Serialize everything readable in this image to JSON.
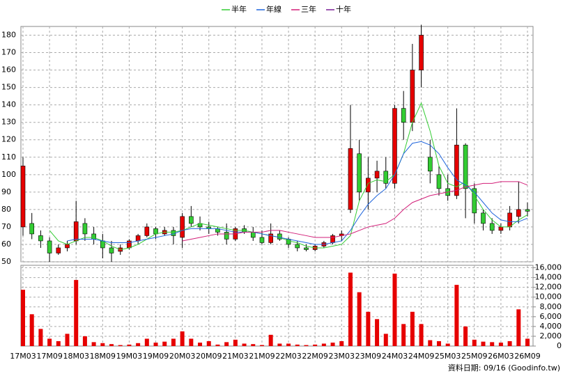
{
  "chart_data": {
    "type": "candlestick",
    "categories": [
      "17M03",
      null,
      null,
      "17M09",
      null,
      null,
      "18M03",
      null,
      null,
      "18M09",
      null,
      null,
      "19M03",
      null,
      null,
      "19M09",
      null,
      null,
      "20M03",
      null,
      null,
      "20M09",
      null,
      null,
      "21M03",
      null,
      null,
      "21M09",
      null,
      null,
      "22M03",
      null,
      null,
      "22M09",
      null,
      null,
      "23M03",
      null,
      null,
      "23M09",
      null,
      null,
      "24M03",
      null,
      null,
      "24M09",
      null,
      null,
      "25M03",
      null,
      null,
      "25M09",
      null,
      null,
      "26M03",
      null,
      null,
      "26M09"
    ],
    "open": [
      70,
      72,
      65,
      62,
      55,
      58,
      62,
      72,
      66,
      62,
      58,
      56,
      58,
      62,
      65,
      69,
      66,
      68,
      64,
      76,
      72,
      70,
      69,
      67,
      63,
      69,
      67,
      64,
      61,
      66,
      63,
      60,
      58,
      57,
      59,
      61,
      65,
      80,
      112,
      90,
      98,
      102,
      95,
      138,
      130,
      160,
      110,
      100,
      92,
      88,
      117,
      92,
      78,
      72,
      68,
      70,
      76,
      80
    ],
    "high": [
      110,
      78,
      68,
      64,
      60,
      62,
      85,
      75,
      70,
      66,
      62,
      60,
      63,
      66,
      72,
      70,
      70,
      70,
      78,
      82,
      76,
      73,
      70,
      72,
      70,
      71,
      70,
      68,
      72,
      68,
      64,
      62,
      60,
      60,
      62,
      66,
      68,
      140,
      120,
      110,
      108,
      110,
      140,
      148,
      175,
      186,
      120,
      105,
      100,
      138,
      118,
      95,
      80,
      75,
      72,
      82,
      96,
      84
    ],
    "low": [
      65,
      63,
      58,
      50,
      54,
      56,
      60,
      62,
      60,
      52,
      50,
      54,
      57,
      60,
      64,
      63,
      65,
      60,
      58,
      70,
      68,
      66,
      65,
      60,
      62,
      66,
      62,
      60,
      60,
      62,
      58,
      56,
      56,
      56,
      58,
      60,
      62,
      78,
      85,
      80,
      90,
      92,
      92,
      120,
      125,
      150,
      95,
      88,
      85,
      86,
      75,
      72,
      68,
      66,
      66,
      68,
      72,
      76
    ],
    "close": [
      105,
      66,
      62,
      55,
      58,
      60,
      73,
      66,
      63,
      58,
      55,
      58,
      62,
      65,
      70,
      66,
      68,
      65,
      76,
      72,
      70,
      69,
      67,
      63,
      69,
      67,
      64,
      61,
      66,
      63,
      60,
      58,
      57,
      59,
      61,
      65,
      66,
      115,
      90,
      98,
      102,
      95,
      138,
      130,
      160,
      180,
      102,
      92,
      88,
      117,
      92,
      78,
      72,
      68,
      70,
      78,
      80,
      79
    ],
    "up_color": "#e60000",
    "down_color": "#33cc33",
    "ylim": [
      50,
      185
    ],
    "yticks": [
      50,
      60,
      70,
      80,
      90,
      100,
      110,
      120,
      130,
      140,
      150,
      160,
      170,
      180
    ],
    "grid": true,
    "ma": [
      {
        "name": "半年",
        "color": "#33cc33",
        "values": [
          null,
          null,
          null,
          68,
          62,
          60,
          62,
          64,
          64,
          62,
          59,
          57,
          58,
          60,
          63,
          66,
          67,
          67,
          68,
          70,
          72,
          71,
          70,
          69,
          68,
          68,
          67,
          66,
          65,
          64,
          62,
          61,
          59,
          58,
          58,
          59,
          60,
          65,
          85,
          95,
          97,
          96,
          100,
          112,
          130,
          141,
          125,
          105,
          95,
          93,
          96,
          88,
          80,
          74,
          70,
          70,
          74,
          77
        ]
      },
      {
        "name": "年線",
        "color": "#1e64dc",
        "values": [
          null,
          null,
          null,
          null,
          null,
          62,
          63,
          63,
          63,
          62,
          61,
          61,
          61,
          62,
          63,
          64,
          65,
          66,
          68,
          69,
          69,
          69,
          69,
          68,
          67,
          67,
          67,
          66,
          65,
          64,
          63,
          62,
          61,
          60,
          60,
          61,
          62,
          68,
          76,
          83,
          88,
          92,
          100,
          112,
          118,
          119,
          117,
          112,
          104,
          97,
          94,
          90,
          84,
          78,
          74,
          73,
          73,
          75
        ]
      },
      {
        "name": "三年",
        "color": "#d21e78",
        "values": [
          null,
          null,
          null,
          null,
          null,
          null,
          null,
          null,
          null,
          null,
          null,
          null,
          null,
          null,
          null,
          null,
          null,
          null,
          62,
          63,
          64,
          65,
          66,
          66,
          66,
          67,
          67,
          67,
          68,
          68,
          67,
          66,
          65,
          64,
          64,
          64,
          65,
          66,
          68,
          70,
          71,
          72,
          75,
          80,
          84,
          86,
          88,
          89,
          90,
          91,
          93,
          94,
          95,
          95,
          96,
          96,
          96,
          94
        ]
      },
      {
        "name": "十年",
        "color": "#7a1e96",
        "values": [
          null,
          null,
          null,
          null,
          null,
          null,
          null,
          null,
          null,
          null,
          null,
          null,
          null,
          null,
          null,
          null,
          null,
          null,
          null,
          null,
          null,
          null,
          null,
          null,
          null,
          null,
          null,
          null,
          null,
          null,
          null,
          null,
          null,
          null,
          null,
          null,
          null,
          null,
          null,
          null,
          null,
          null,
          null,
          null,
          null,
          null,
          null,
          null,
          null,
          null,
          null,
          null,
          null,
          null,
          null,
          null,
          null,
          null
        ]
      }
    ],
    "volume": {
      "color": "#e60000",
      "values": [
        11500,
        6500,
        3500,
        1500,
        1000,
        2500,
        13500,
        2000,
        800,
        600,
        400,
        200,
        300,
        600,
        1500,
        700,
        900,
        1500,
        3000,
        1500,
        700,
        1000,
        300,
        800,
        1300,
        500,
        400,
        200,
        2300,
        500,
        500,
        300,
        200,
        300,
        500,
        700,
        1000,
        15000,
        11000,
        7000,
        5500,
        2500,
        14800,
        4500,
        7000,
        4500,
        1200,
        1000,
        500,
        12500,
        4000,
        1300,
        900,
        800,
        700,
        1000,
        7500,
        1500
      ],
      "ylim": [
        0,
        16500
      ],
      "yticks": [
        0,
        {
          "value": 2000,
          "label": "2,000"
        },
        {
          "value": 4000,
          "label": "4,000"
        },
        {
          "value": 6000,
          "label": "6,000"
        },
        {
          "value": 8000,
          "label": "8,000"
        },
        {
          "value": 10000,
          "label": "10,000"
        },
        {
          "value": 12000,
          "label": "12,000"
        },
        {
          "value": 14000,
          "label": "14,000"
        },
        {
          "value": 16000,
          "label": "16,000"
        }
      ]
    },
    "footer": "資料日期: 09/16  (Goodinfo.tw)"
  }
}
